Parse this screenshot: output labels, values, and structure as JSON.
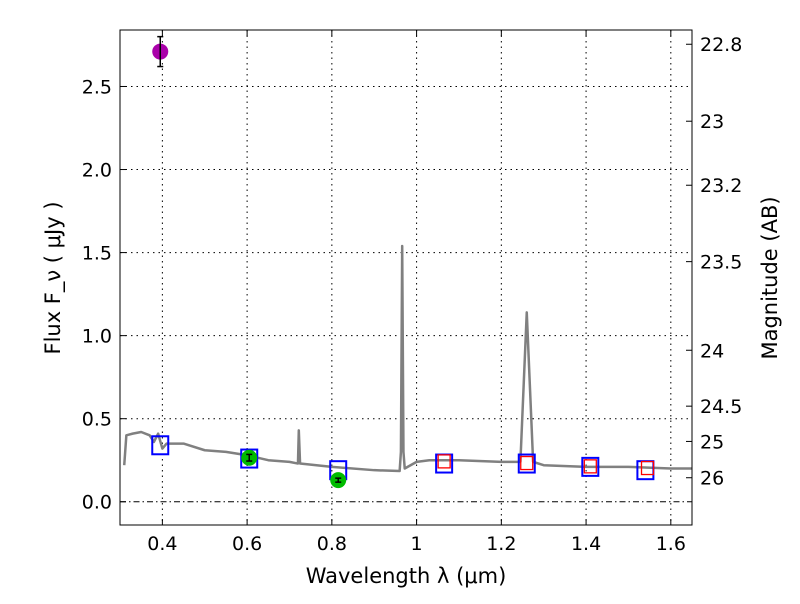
{
  "chart_data": {
    "type": "scatter",
    "title": "",
    "xlabel": "Wavelength  λ (μm)",
    "ylabel": "Flux  F_ν  ( μJy )",
    "ylabel_right": "Magnitude (AB)",
    "xlim": [
      0.3,
      1.65
    ],
    "ylim": [
      -0.14,
      2.84
    ],
    "grid": true,
    "xticks": [
      0.4,
      0.6,
      0.8,
      1.0,
      1.2,
      1.4,
      1.6
    ],
    "xtick_labels": [
      "0.4",
      "0.6",
      "0.8",
      "1",
      "1.2",
      "1.4",
      "1.6"
    ],
    "yticks": [
      0.0,
      0.5,
      1.0,
      1.5,
      2.0,
      2.5
    ],
    "ytick_labels": [
      "0.0",
      "0.5",
      "1.0",
      "1.5",
      "2.0",
      "2.5"
    ],
    "right_ticks": [
      22.8,
      23,
      23.2,
      23.5,
      24,
      24.5,
      25,
      26
    ],
    "right_tick_labels": [
      "22.8",
      "23",
      "23.2",
      "23.5",
      "24",
      "24.5",
      "25",
      "26"
    ],
    "ab_zeropoint": 23.9,
    "colors": {
      "spectrum": "#808080",
      "model_phot": "#0000ff",
      "model_phot_small": "#ff0000",
      "detections": "#00bb00",
      "purple": "#aa00aa"
    },
    "series": [
      {
        "name": "model spectrum",
        "type": "line",
        "x": [
          0.31,
          0.315,
          0.33,
          0.35,
          0.37,
          0.38,
          0.39,
          0.4,
          0.41,
          0.45,
          0.5,
          0.55,
          0.6,
          0.65,
          0.7,
          0.72,
          0.722,
          0.725,
          0.8,
          0.9,
          0.96,
          0.963,
          0.966,
          0.969,
          0.972,
          1.0,
          1.03,
          1.1,
          1.2,
          1.245,
          1.26,
          1.275,
          1.3,
          1.4,
          1.5,
          1.6,
          1.65
        ],
        "y": [
          0.22,
          0.4,
          0.41,
          0.42,
          0.4,
          0.36,
          0.41,
          0.32,
          0.35,
          0.35,
          0.31,
          0.3,
          0.28,
          0.25,
          0.24,
          0.23,
          0.43,
          0.23,
          0.21,
          0.19,
          0.185,
          0.3,
          1.54,
          0.3,
          0.2,
          0.24,
          0.25,
          0.25,
          0.24,
          0.24,
          1.14,
          0.24,
          0.22,
          0.21,
          0.21,
          0.2,
          0.2
        ]
      },
      {
        "name": "model photometry",
        "type": "square",
        "x": [
          0.395,
          0.605,
          0.815,
          1.065,
          1.26,
          1.41,
          1.54
        ],
        "y": [
          0.34,
          0.26,
          0.19,
          0.23,
          0.23,
          0.21,
          0.19
        ]
      },
      {
        "name": "model photometry (NIR)",
        "type": "square-small",
        "x": [
          1.065,
          1.26,
          1.41,
          1.545
        ],
        "y": [
          0.24,
          0.23,
          0.21,
          0.2
        ]
      },
      {
        "name": "detections",
        "type": "point",
        "x": [
          0.605,
          0.815
        ],
        "y": [
          0.265,
          0.13
        ],
        "err": [
          0.02,
          0.012
        ]
      },
      {
        "name": "blue detection",
        "type": "point",
        "x": [
          0.395
        ],
        "y": [
          2.71
        ],
        "err": [
          0.09
        ]
      }
    ]
  }
}
